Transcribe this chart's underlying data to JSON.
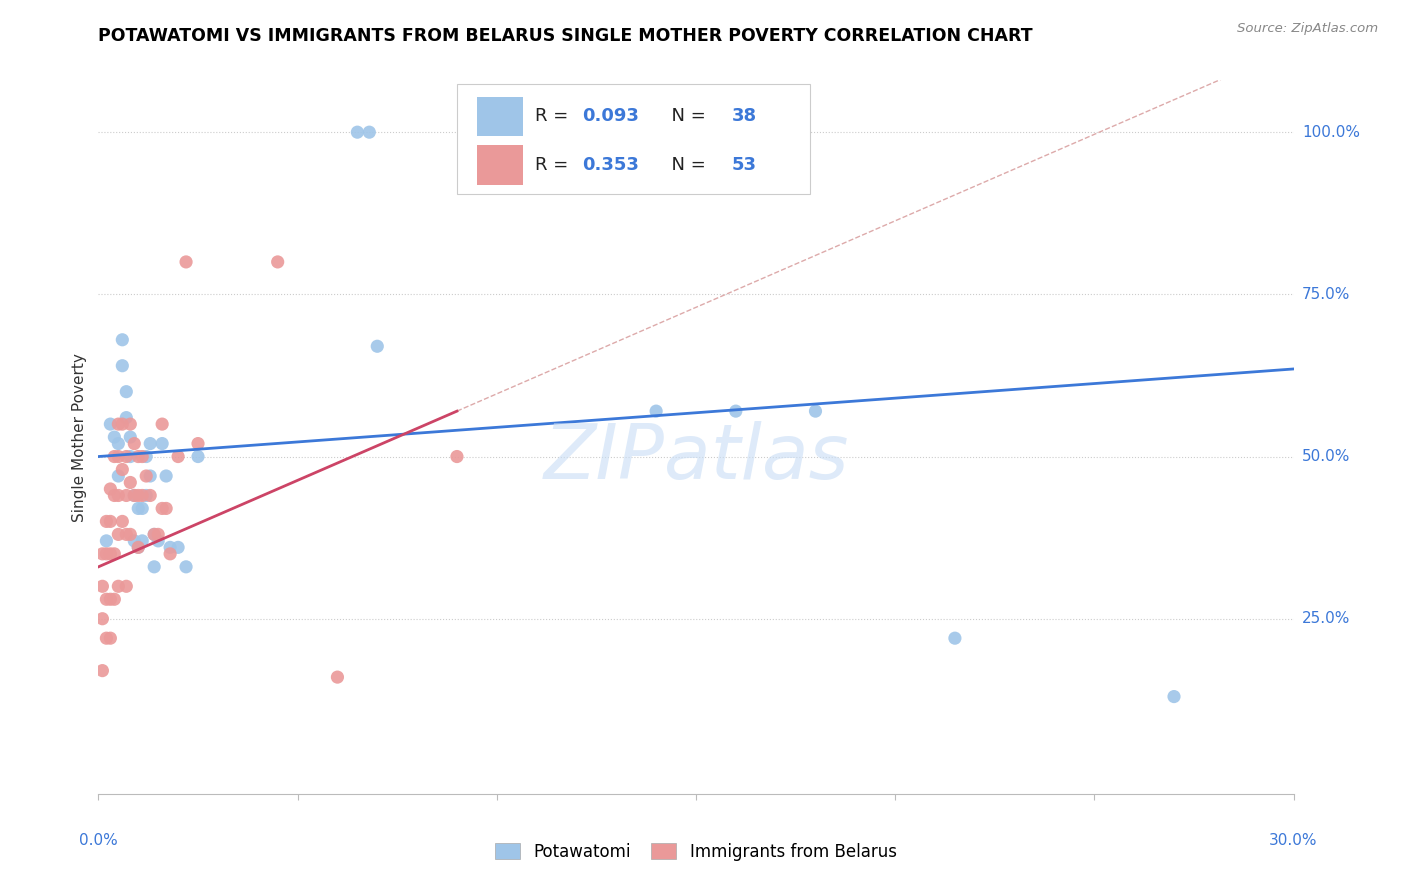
{
  "title": "POTAWATOMI VS IMMIGRANTS FROM BELARUS SINGLE MOTHER POVERTY CORRELATION CHART",
  "source": "Source: ZipAtlas.com",
  "ylabel": "Single Mother Poverty",
  "xlim": [
    0.0,
    0.3
  ],
  "ylim": [
    -0.02,
    1.08
  ],
  "blue_R": 0.093,
  "blue_N": 38,
  "pink_R": 0.353,
  "pink_N": 53,
  "blue_color": "#9fc5e8",
  "pink_color": "#ea9999",
  "blue_line_color": "#3c78d8",
  "pink_line_color": "#cc4466",
  "watermark": "ZIPatlas",
  "blue_scatter_x": [
    0.002,
    0.003,
    0.004,
    0.005,
    0.005,
    0.006,
    0.006,
    0.007,
    0.007,
    0.008,
    0.008,
    0.009,
    0.009,
    0.01,
    0.01,
    0.011,
    0.011,
    0.012,
    0.012,
    0.013,
    0.013,
    0.014,
    0.014,
    0.015,
    0.016,
    0.017,
    0.018,
    0.02,
    0.022,
    0.025,
    0.065,
    0.068,
    0.07,
    0.14,
    0.16,
    0.18,
    0.215,
    0.27
  ],
  "blue_scatter_y": [
    0.37,
    0.55,
    0.53,
    0.52,
    0.47,
    0.68,
    0.64,
    0.56,
    0.6,
    0.5,
    0.53,
    0.44,
    0.37,
    0.42,
    0.36,
    0.42,
    0.37,
    0.5,
    0.44,
    0.52,
    0.47,
    0.38,
    0.33,
    0.37,
    0.52,
    0.47,
    0.36,
    0.36,
    0.33,
    0.5,
    1.0,
    1.0,
    0.67,
    0.57,
    0.57,
    0.57,
    0.22,
    0.13
  ],
  "pink_scatter_x": [
    0.001,
    0.001,
    0.001,
    0.001,
    0.002,
    0.002,
    0.002,
    0.002,
    0.003,
    0.003,
    0.003,
    0.003,
    0.003,
    0.004,
    0.004,
    0.004,
    0.004,
    0.005,
    0.005,
    0.005,
    0.005,
    0.005,
    0.006,
    0.006,
    0.006,
    0.007,
    0.007,
    0.007,
    0.007,
    0.008,
    0.008,
    0.008,
    0.009,
    0.009,
    0.01,
    0.01,
    0.01,
    0.011,
    0.011,
    0.012,
    0.013,
    0.014,
    0.015,
    0.016,
    0.016,
    0.017,
    0.018,
    0.02,
    0.022,
    0.025,
    0.045,
    0.06,
    0.09
  ],
  "pink_scatter_y": [
    0.35,
    0.3,
    0.25,
    0.17,
    0.4,
    0.35,
    0.28,
    0.22,
    0.45,
    0.4,
    0.35,
    0.28,
    0.22,
    0.5,
    0.44,
    0.35,
    0.28,
    0.55,
    0.5,
    0.44,
    0.38,
    0.3,
    0.55,
    0.48,
    0.4,
    0.5,
    0.44,
    0.38,
    0.3,
    0.55,
    0.46,
    0.38,
    0.52,
    0.44,
    0.5,
    0.44,
    0.36,
    0.5,
    0.44,
    0.47,
    0.44,
    0.38,
    0.38,
    0.55,
    0.42,
    0.42,
    0.35,
    0.5,
    0.8,
    0.52,
    0.8,
    0.16,
    0.5
  ]
}
